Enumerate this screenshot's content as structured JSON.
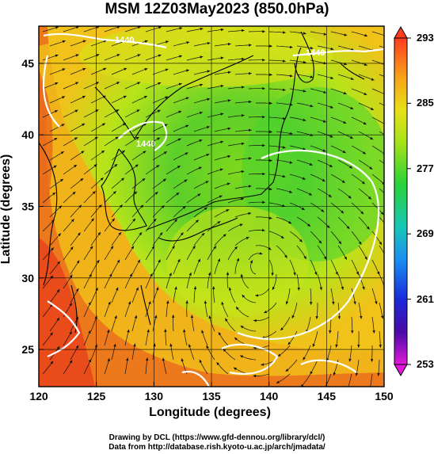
{
  "title": "MSM 12Z03May2023 (850.0hPa)",
  "axes": {
    "xlabel": "Longitude (degrees)",
    "ylabel": "Latitude  (degrees)",
    "xticks": [
      "120",
      "125",
      "130",
      "135",
      "140",
      "145",
      "150"
    ],
    "yticks": [
      "25",
      "30",
      "35",
      "40",
      "45"
    ],
    "xlim": [
      120,
      150
    ],
    "ylim": [
      22.4,
      47.6
    ]
  },
  "colorbar": {
    "ticks": [
      "293",
      "285",
      "277",
      "269",
      "261",
      "253"
    ],
    "range": [
      253,
      293
    ]
  },
  "contour_labels": [
    "1440",
    "1440",
    "1440"
  ],
  "credits": {
    "line1": "Drawing by DCL (https://www.gfd-dennou.org/library/dcl/)",
    "line2": "Data from http://database.rish.kyoto-u.ac.jp/arch/jmadata/"
  },
  "colors": {
    "warm": "#e8501a",
    "mid": "#d6e818",
    "cool": "#3ed23a",
    "contour": "#ffffff"
  }
}
